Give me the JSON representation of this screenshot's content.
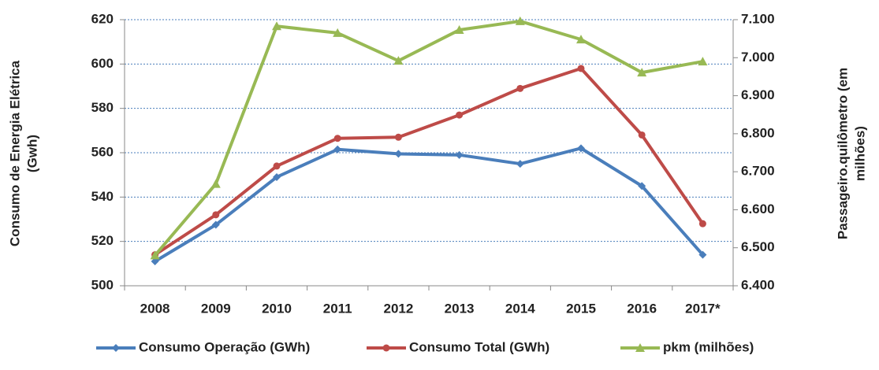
{
  "chart_data": {
    "type": "line",
    "y_label": [
      "Consumo de Energia Elétrica",
      "(Gwh)"
    ],
    "y2_label": [
      "Passageiro.quilômetro (em",
      "milhões)"
    ],
    "categories": [
      "2008",
      "2009",
      "2010",
      "2011",
      "2012",
      "2013",
      "2014",
      "2015",
      "2016",
      "2017*"
    ],
    "series": [
      {
        "name": "Consumo Operação (GWh)",
        "color": "#4a7ebb",
        "marker": "diamond",
        "values": [
          511,
          527.5,
          549,
          561.5,
          559.5,
          559,
          555,
          562,
          545,
          514
        ]
      },
      {
        "name": "Consumo Total (GWh)",
        "color": "#be4b48",
        "marker": "circle",
        "values": [
          514,
          532,
          554,
          566.5,
          567,
          577,
          589,
          598,
          568,
          528
        ]
      },
      {
        "name": "pkm (milhões)",
        "color": "#98b954",
        "marker": "triangle",
        "axis": "y2",
        "values": [
          6480,
          6668,
          7083,
          7065,
          6992,
          7073,
          7096,
          7048,
          6961,
          6990
        ]
      }
    ],
    "ylim": [
      500,
      620
    ],
    "yticks": [
      500,
      520,
      540,
      560,
      580,
      600,
      620
    ],
    "y2lim": [
      6400,
      7100
    ],
    "y2ticks": [
      {
        "value": 6400,
        "label": "6.400"
      },
      {
        "value": 6500,
        "label": "6.500"
      },
      {
        "value": 6600,
        "label": "6.600"
      },
      {
        "value": 6700,
        "label": "6.700"
      },
      {
        "value": 6800,
        "label": "6.800"
      },
      {
        "value": 6900,
        "label": "6.900"
      },
      {
        "value": 7000,
        "label": "7.000"
      },
      {
        "value": 7100,
        "label": "7.100"
      }
    ],
    "grid": true,
    "legend": "bottom"
  }
}
